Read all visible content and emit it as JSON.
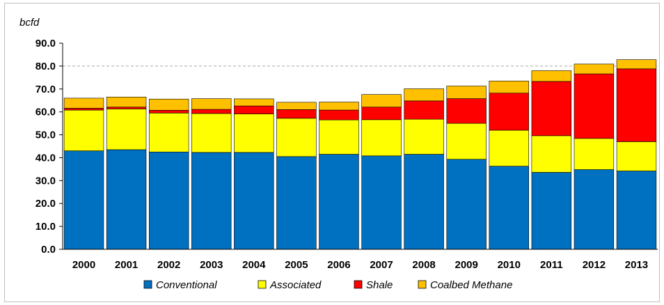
{
  "chart_data": {
    "type": "bar",
    "stacked": true,
    "unit_label": "bcfd",
    "categories": [
      "2000",
      "2001",
      "2002",
      "2003",
      "2004",
      "2005",
      "2006",
      "2007",
      "2008",
      "2009",
      "2010",
      "2011",
      "2012",
      "2013"
    ],
    "series": [
      {
        "name": "Conventional",
        "color": "#0070c0",
        "values": [
          43.0,
          43.5,
          42.5,
          42.3,
          42.3,
          40.5,
          41.5,
          40.8,
          41.5,
          39.3,
          36.3,
          33.6,
          34.8,
          34.2
        ]
      },
      {
        "name": "Associated",
        "color": "#ffff00",
        "values": [
          17.8,
          17.8,
          17.0,
          17.0,
          16.8,
          16.7,
          15.0,
          15.8,
          15.3,
          15.7,
          15.7,
          16.0,
          13.6,
          12.8
        ]
      },
      {
        "name": "Shale",
        "color": "#ff0000",
        "values": [
          0.8,
          0.8,
          1.2,
          1.8,
          3.5,
          3.8,
          4.3,
          5.5,
          8.0,
          10.8,
          16.2,
          23.7,
          28.2,
          31.8
        ]
      },
      {
        "name": "Coalbed Methane",
        "color": "#ffc000",
        "values": [
          4.4,
          4.4,
          4.9,
          4.7,
          3.1,
          3.2,
          3.5,
          5.5,
          5.3,
          5.5,
          5.3,
          4.7,
          4.3,
          4.0
        ]
      }
    ],
    "ylim": [
      0,
      90
    ],
    "yticks": [
      "0.0",
      "10.0",
      "20.0",
      "30.0",
      "40.0",
      "50.0",
      "60.0",
      "70.0",
      "80.0",
      "90.0"
    ],
    "ytick_values": [
      0,
      10,
      20,
      30,
      40,
      50,
      60,
      70,
      80,
      90
    ],
    "gridlines": [
      80
    ],
    "legend_position": "bottom"
  }
}
